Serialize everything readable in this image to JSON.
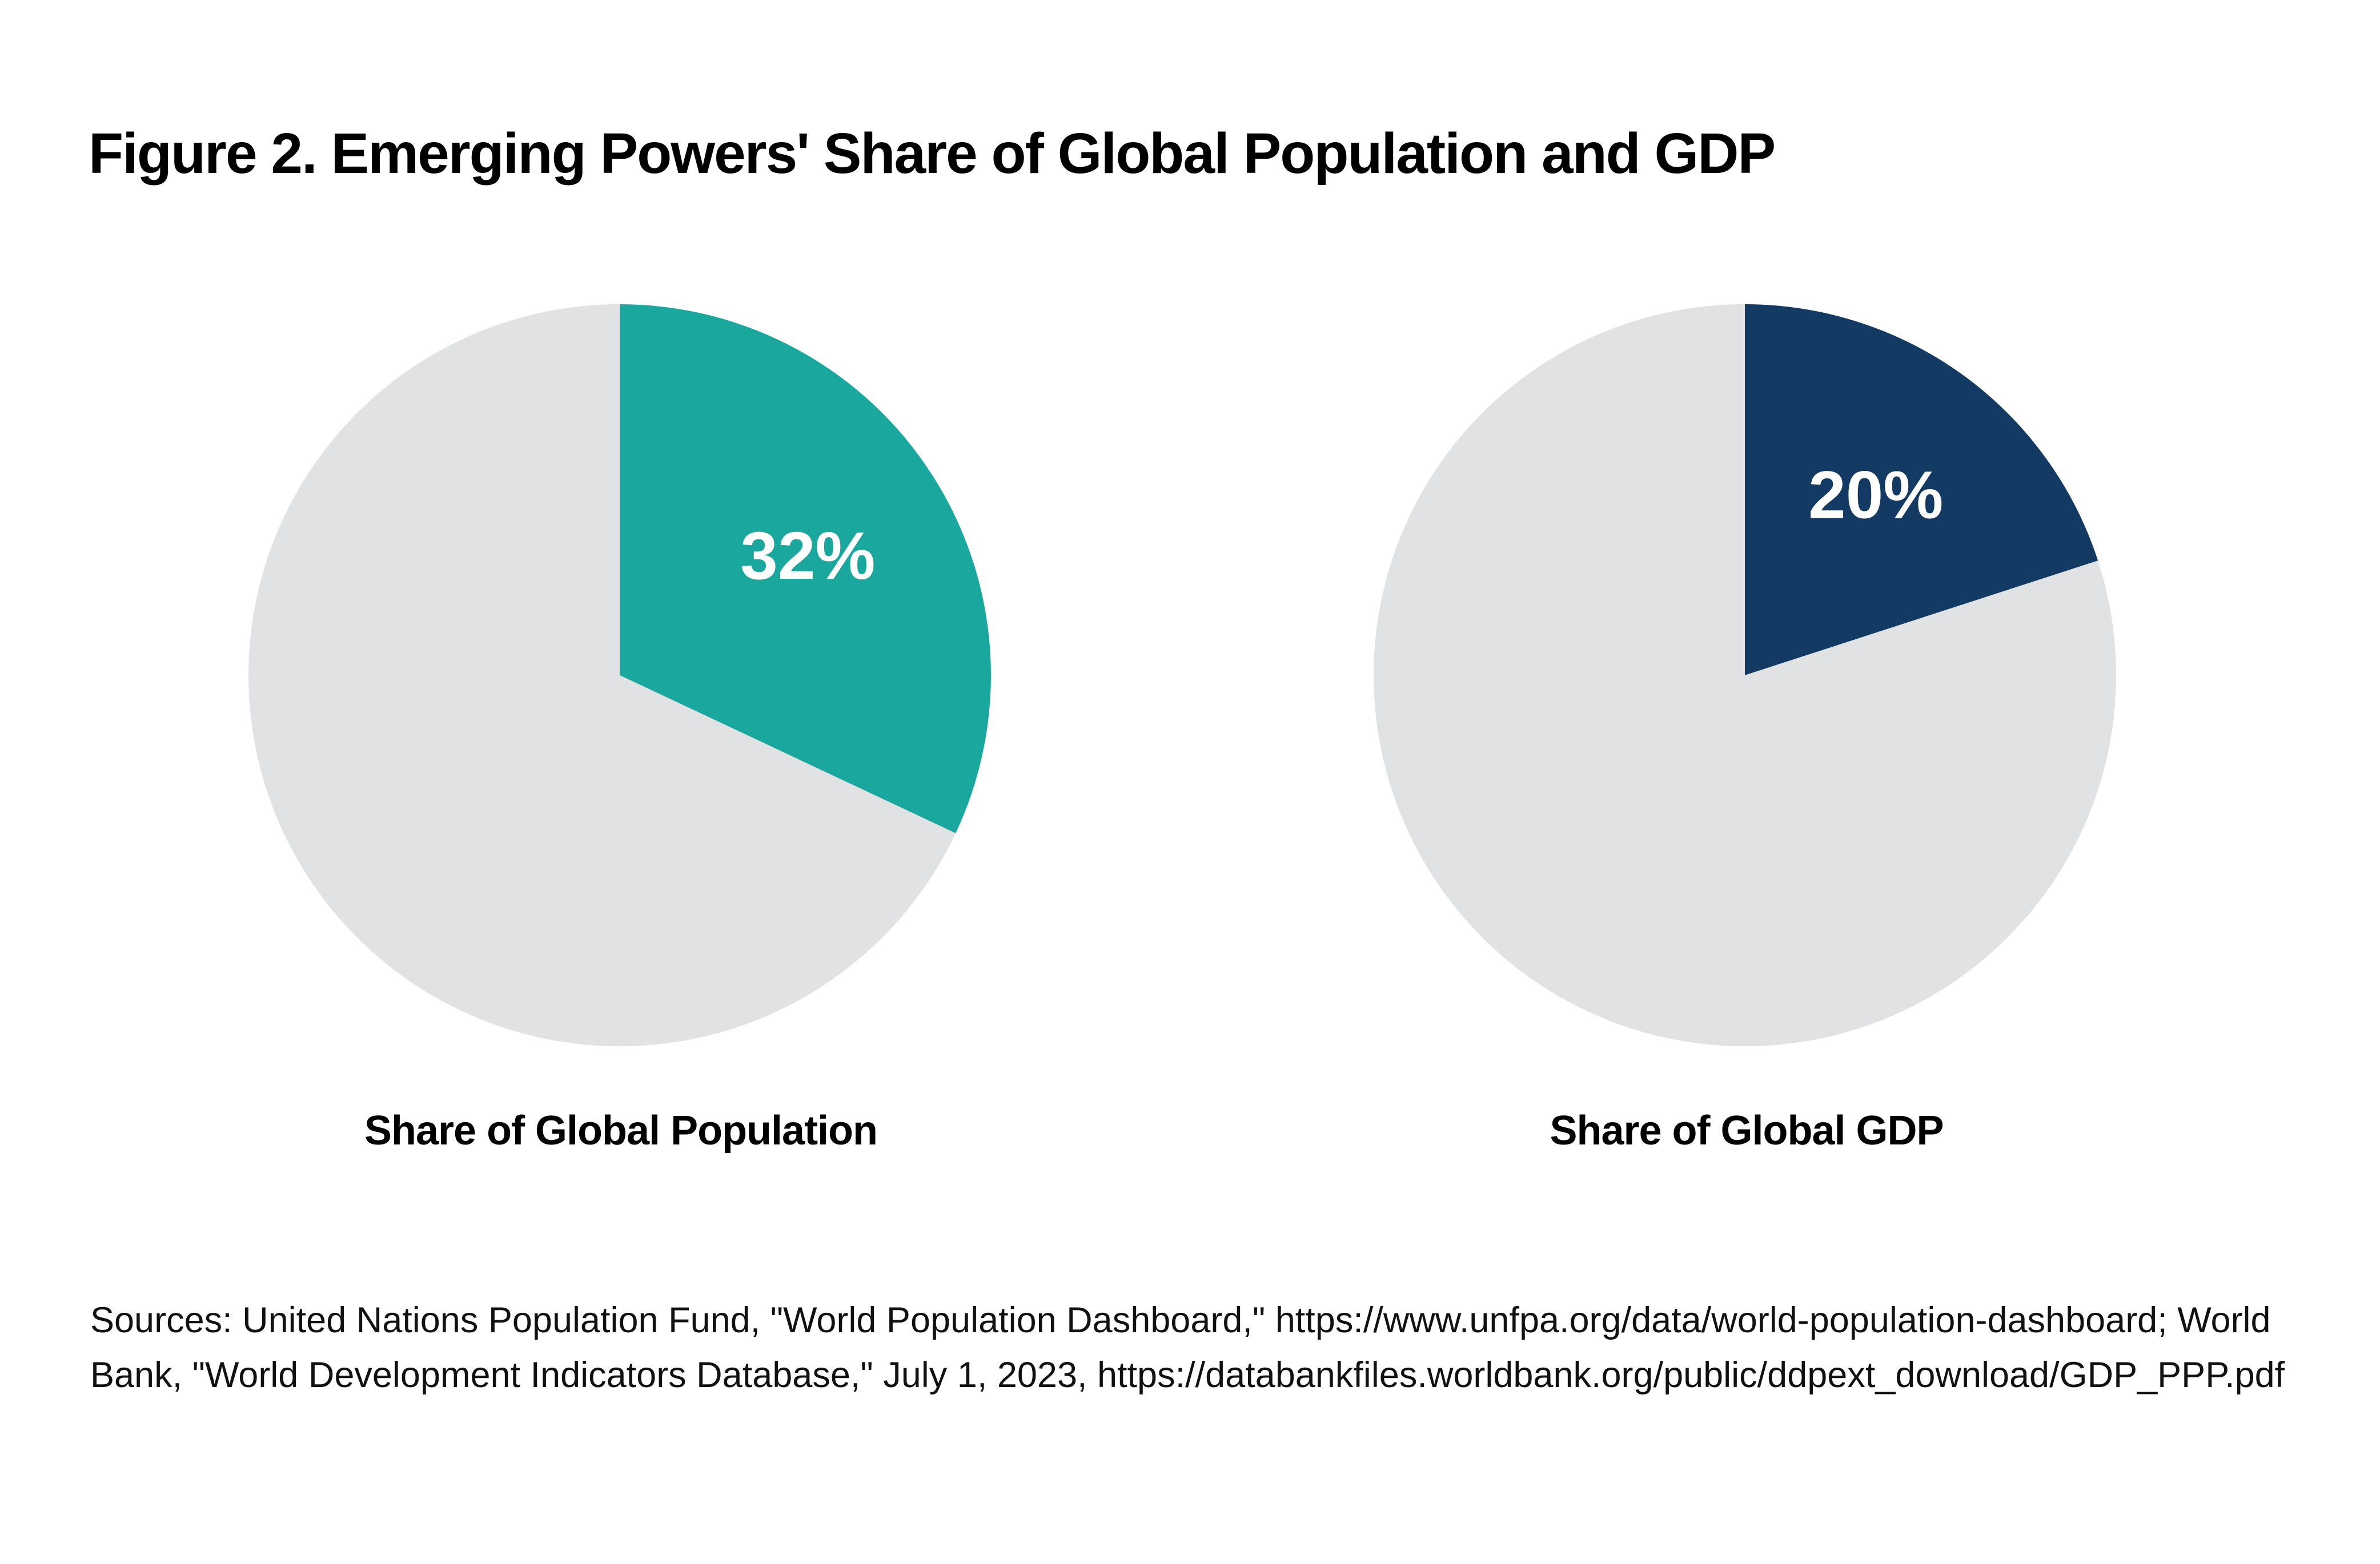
{
  "title": "Figure 2. Emerging Powers' Share of Global Population and GDP",
  "chart_data": [
    {
      "type": "pie",
      "title": "Share of Global Population",
      "slices": [
        {
          "value": 32,
          "label": "32%",
          "color": "#1aa89e"
        },
        {
          "value": 68,
          "label": "",
          "color": "#e1e2e4"
        }
      ]
    },
    {
      "type": "pie",
      "title": "Share of Global GDP",
      "slices": [
        {
          "value": 20,
          "label": "20%",
          "color": "#123a62"
        },
        {
          "value": 80,
          "label": "",
          "color": "#e1e2e4"
        }
      ]
    }
  ],
  "sources": "Sources: United Nations Population Fund, \"World Population Dashboard,\"  https://www.unfpa.org/data/world-population-dashboard; World Bank, \"World Development Indicators Database,\" July 1, 2023, https://databankfiles.worldbank.org/public/ddpext_download/GDP_PPP.pdf"
}
